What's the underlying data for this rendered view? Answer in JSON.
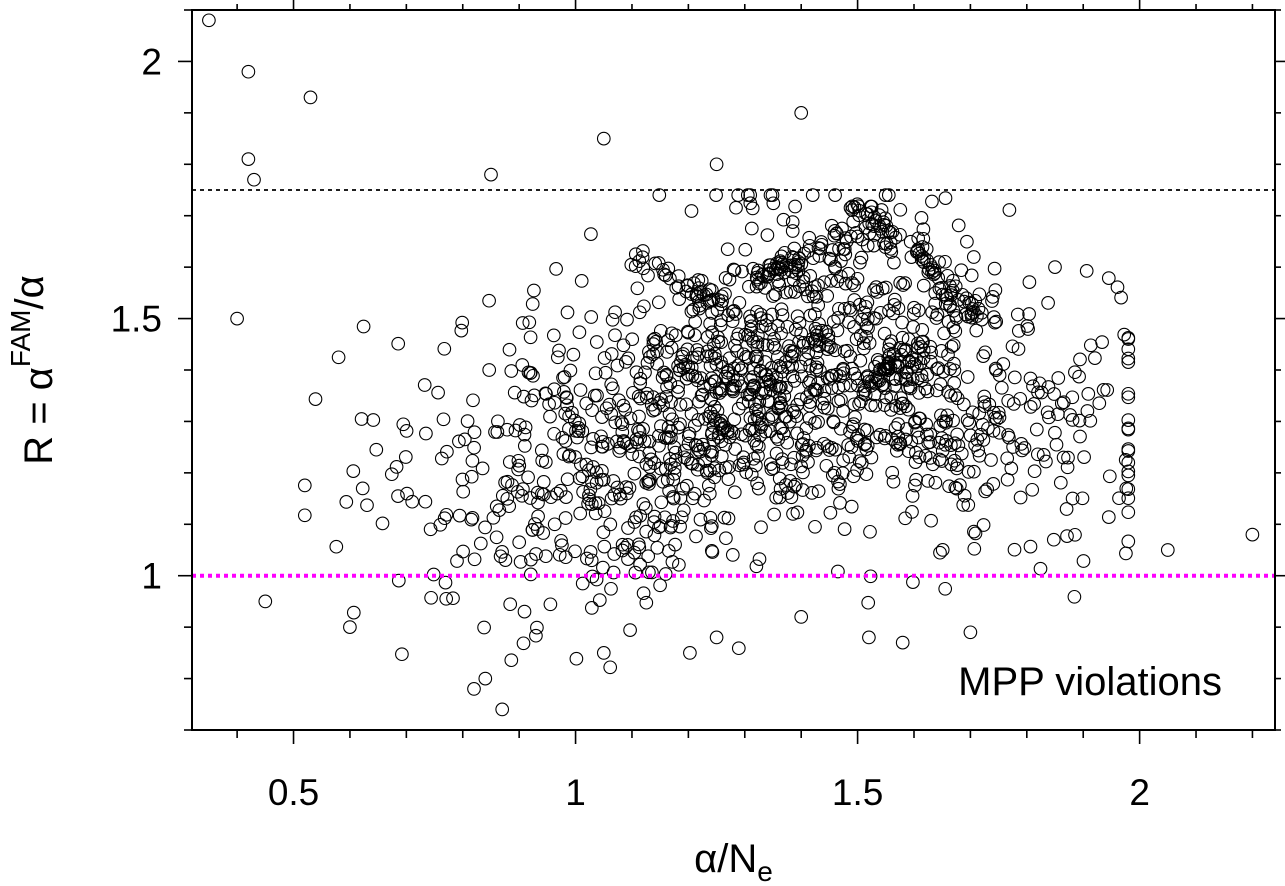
{
  "chart_data": {
    "type": "scatter",
    "xlabel": "α/N",
    "xlabel_sub": "e",
    "ylabel": "R = α",
    "ylabel_sup": "FAM",
    "ylabel_tail": "/α",
    "xlim": [
      0.32,
      2.24
    ],
    "ylim": [
      0.7,
      2.1
    ],
    "xticks": [
      0.5,
      1,
      1.5,
      2
    ],
    "xtick_labels": [
      "0.5",
      "1",
      "1.5",
      "2"
    ],
    "yticks": [
      1,
      1.5,
      2
    ],
    "ytick_labels": [
      "1",
      "1.5",
      "2"
    ],
    "x_minor_step": 0.1,
    "y_minor_step": 0.1,
    "grid": false,
    "reference_lines": [
      {
        "y": 1.75,
        "color": "#000000",
        "style": "dotted"
      },
      {
        "y": 1.0,
        "color": "#ff00ff",
        "style": "dotted"
      }
    ],
    "annotation": "MPP violations",
    "marker": "open-circle",
    "outliers": [
      [
        0.35,
        2.08
      ],
      [
        0.42,
        1.98
      ],
      [
        0.53,
        1.93
      ],
      [
        0.42,
        1.81
      ],
      [
        0.43,
        1.77
      ],
      [
        0.85,
        1.78
      ],
      [
        1.05,
        1.85
      ],
      [
        1.25,
        1.8
      ],
      [
        1.4,
        1.9
      ],
      [
        0.4,
        1.5
      ],
      [
        1.85,
        1.6
      ],
      [
        2.2,
        1.08
      ],
      [
        2.05,
        1.05
      ],
      [
        0.87,
        0.74
      ],
      [
        0.82,
        0.78
      ],
      [
        0.84,
        0.8
      ],
      [
        0.45,
        0.95
      ],
      [
        0.6,
        0.9
      ],
      [
        1.05,
        0.85
      ],
      [
        1.25,
        0.88
      ],
      [
        1.4,
        0.92
      ],
      [
        1.52,
        0.88
      ],
      [
        1.58,
        0.87
      ],
      [
        1.7,
        0.89
      ]
    ],
    "bulk_summary": {
      "n_points": 1640,
      "x_center": 1.35,
      "x_spread": 0.3,
      "x_range": [
        0.52,
        1.98
      ],
      "y_center": 1.36,
      "y_spread": 0.19,
      "y_range": [
        0.82,
        1.74
      ],
      "y_center_at_low_x": 1.18,
      "y_center_at_high_x": 1.3,
      "streaks": [
        {
          "x_from": 1.5,
          "x_to": 1.62,
          "y_from": 1.72,
          "y_to": 1.62
        },
        {
          "x_from": 1.62,
          "x_to": 1.72,
          "y_from": 1.6,
          "y_to": 1.5
        },
        {
          "x_from": 1.1,
          "x_to": 1.28,
          "y_from": 1.63,
          "y_to": 1.5
        },
        {
          "x_from": 1.52,
          "x_to": 1.62,
          "y_from": 1.38,
          "y_to": 1.44
        },
        {
          "x_from": 1.32,
          "x_to": 1.48,
          "y_from": 1.58,
          "y_to": 1.66
        }
      ]
    }
  }
}
